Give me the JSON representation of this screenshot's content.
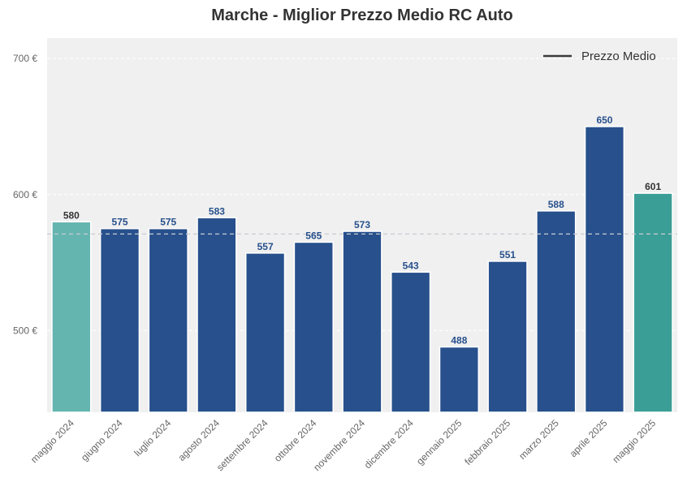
{
  "chart_data": {
    "type": "bar",
    "title": "Marche - Miglior Prezzo Medio RC Auto",
    "categories": [
      "maggio 2024",
      "giugno 2024",
      "luglio 2024",
      "agosto 2024",
      "settembre 2024",
      "ottobre 2024",
      "novembre 2024",
      "dicembre 2024",
      "gennaio 2025",
      "febbraio 2025",
      "marzo 2025",
      "aprile 2025",
      "maggio 2025"
    ],
    "values": [
      580,
      575,
      575,
      583,
      557,
      565,
      573,
      543,
      488,
      551,
      588,
      650,
      601
    ],
    "value_labels": [
      "580",
      "575",
      "575",
      "583",
      "557",
      "565",
      "573",
      "543",
      "488",
      "551",
      "588",
      "650",
      "601"
    ],
    "bar_colors": [
      "#64b5b0",
      "#27508c",
      "#27508c",
      "#27508c",
      "#27508c",
      "#27508c",
      "#27508c",
      "#27508c",
      "#27508c",
      "#27508c",
      "#27508c",
      "#27508c",
      "#3a9e96"
    ],
    "label_colors": [
      "#333333",
      "#27508c",
      "#27508c",
      "#27508c",
      "#27508c",
      "#27508c",
      "#27508c",
      "#27508c",
      "#27508c",
      "#27508c",
      "#27508c",
      "#27508c",
      "#333333"
    ],
    "y_ticks": [
      500,
      600,
      700
    ],
    "y_tick_labels": [
      "500 €",
      "600 €",
      "700 €"
    ],
    "ylim": [
      440,
      715
    ],
    "reference_line": {
      "value": 571,
      "style": "dashed"
    },
    "legend": {
      "label": "Prezzo Medio",
      "placement": "top-right"
    },
    "grid": true,
    "xlabel": "",
    "ylabel": ""
  }
}
